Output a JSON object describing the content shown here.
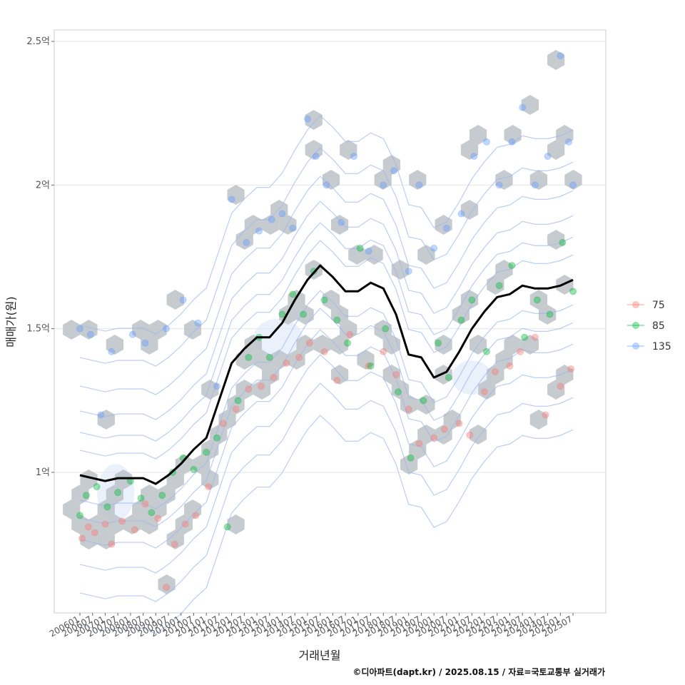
{
  "chart_data": {
    "type": "scatter",
    "xlabel": "거래년월",
    "ylabel": "매매가(원)",
    "caption": "©디아파트(dapt.kr) / 2025.08.15 / 자료=국토교통부 실거래가",
    "ylim": [
      0.5,
      2.55
    ],
    "y_ticks": [
      {
        "value": 1.0,
        "label": "1억"
      },
      {
        "value": 1.5,
        "label": "1.5억"
      },
      {
        "value": 2.0,
        "label": "2억"
      },
      {
        "value": 2.5,
        "label": "2.5억"
      }
    ],
    "x_range": [
      "2006-01",
      "2025-08"
    ],
    "x_tick_labels": [
      "200601",
      "200607",
      "200701",
      "200707",
      "200801",
      "200807",
      "200901",
      "200907",
      "201001",
      "201007",
      "201101",
      "201107",
      "201201",
      "201207",
      "201301",
      "201307",
      "201401",
      "201407",
      "201501",
      "201507",
      "201601",
      "201607",
      "201701",
      "201707",
      "201801",
      "201807",
      "201901",
      "201907",
      "202001",
      "202007",
      "202101",
      "202107",
      "202201",
      "202207",
      "202301",
      "202307",
      "202401",
      "202407",
      "202501",
      "202507"
    ],
    "legend": {
      "position": "right",
      "entries": [
        {
          "name": "75",
          "color": "#F8766D"
        },
        {
          "name": "85",
          "color": "#00BA38"
        },
        {
          "name": "135",
          "color": "#619CFF"
        }
      ]
    },
    "colors": {
      "hex": "#bcc2c8",
      "line": "#000000",
      "contour": "#9fb6ee",
      "core": "#dce7f7",
      "grid": "#e6e6e6",
      "panel_border": "#cccccc"
    },
    "trend_line": {
      "x": [
        "2006-01",
        "2006-07",
        "2007-01",
        "2007-07",
        "2008-01",
        "2008-07",
        "2009-01",
        "2009-07",
        "2010-01",
        "2010-07",
        "2011-01",
        "2011-07",
        "2012-01",
        "2012-07",
        "2013-01",
        "2013-07",
        "2014-01",
        "2014-07",
        "2015-01",
        "2015-07",
        "2016-01",
        "2016-07",
        "2017-01",
        "2017-07",
        "2018-01",
        "2018-07",
        "2019-01",
        "2019-07",
        "2020-01",
        "2020-07",
        "2021-01",
        "2021-07",
        "2022-01",
        "2022-07",
        "2023-01",
        "2023-07",
        "2024-01",
        "2024-07",
        "2025-01",
        "2025-07"
      ],
      "y": [
        0.99,
        0.98,
        0.97,
        0.98,
        0.98,
        0.98,
        0.96,
        0.99,
        1.03,
        1.08,
        1.12,
        1.25,
        1.38,
        1.43,
        1.47,
        1.47,
        1.52,
        1.6,
        1.67,
        1.72,
        1.68,
        1.63,
        1.63,
        1.66,
        1.64,
        1.55,
        1.41,
        1.4,
        1.33,
        1.35,
        1.42,
        1.5,
        1.56,
        1.61,
        1.62,
        1.65,
        1.64,
        1.64,
        1.65,
        1.67
      ]
    },
    "series": [
      {
        "name": "75",
        "points": [
          [
            "2006-02",
            0.77
          ],
          [
            "2006-05",
            0.81
          ],
          [
            "2006-08",
            0.79
          ],
          [
            "2007-01",
            0.82
          ],
          [
            "2007-04",
            0.75
          ],
          [
            "2007-09",
            0.83
          ],
          [
            "2008-03",
            0.8
          ],
          [
            "2008-08",
            0.89
          ],
          [
            "2009-02",
            0.84
          ],
          [
            "2009-06",
            0.6
          ],
          [
            "2009-10",
            0.75
          ],
          [
            "2010-03",
            0.82
          ],
          [
            "2010-08",
            0.85
          ],
          [
            "2011-02",
            0.95
          ],
          [
            "2011-09",
            1.17
          ],
          [
            "2012-03",
            1.22
          ],
          [
            "2012-09",
            1.29
          ],
          [
            "2013-03",
            1.3
          ],
          [
            "2013-09",
            1.33
          ],
          [
            "2014-03",
            1.38
          ],
          [
            "2014-09",
            1.4
          ],
          [
            "2015-02",
            1.45
          ],
          [
            "2015-09",
            1.42
          ],
          [
            "2016-03",
            1.32
          ],
          [
            "2016-09",
            1.48
          ],
          [
            "2017-06",
            1.37
          ],
          [
            "2018-01",
            1.42
          ],
          [
            "2018-07",
            1.34
          ],
          [
            "2019-01",
            1.22
          ],
          [
            "2019-06",
            1.1
          ],
          [
            "2020-01",
            1.12
          ],
          [
            "2020-06",
            1.15
          ],
          [
            "2021-01",
            1.17
          ],
          [
            "2021-06",
            1.13
          ],
          [
            "2022-01",
            1.28
          ],
          [
            "2022-06",
            1.35
          ],
          [
            "2023-01",
            1.37
          ],
          [
            "2023-06",
            1.42
          ],
          [
            "2024-01",
            1.47
          ],
          [
            "2024-06",
            1.2
          ],
          [
            "2025-01",
            1.3
          ],
          [
            "2025-06",
            1.36
          ]
        ]
      },
      {
        "name": "85",
        "points": [
          [
            "2006-01",
            0.85
          ],
          [
            "2006-04",
            0.92
          ],
          [
            "2006-09",
            0.95
          ],
          [
            "2007-02",
            0.88
          ],
          [
            "2007-07",
            0.93
          ],
          [
            "2008-01",
            0.97
          ],
          [
            "2008-06",
            0.91
          ],
          [
            "2008-11",
            0.86
          ],
          [
            "2009-04",
            0.92
          ],
          [
            "2009-09",
            1.0
          ],
          [
            "2010-02",
            1.05
          ],
          [
            "2010-07",
            1.01
          ],
          [
            "2011-01",
            1.07
          ],
          [
            "2011-06",
            1.12
          ],
          [
            "2011-11",
            0.81
          ],
          [
            "2012-04",
            1.25
          ],
          [
            "2012-09",
            1.4
          ],
          [
            "2013-02",
            1.47
          ],
          [
            "2013-07",
            1.4
          ],
          [
            "2014-01",
            1.55
          ],
          [
            "2014-06",
            1.62
          ],
          [
            "2014-11",
            1.55
          ],
          [
            "2015-04",
            1.7
          ],
          [
            "2015-09",
            1.6
          ],
          [
            "2016-03",
            1.53
          ],
          [
            "2016-08",
            1.45
          ],
          [
            "2017-02",
            1.78
          ],
          [
            "2017-07",
            1.37
          ],
          [
            "2018-02",
            1.5
          ],
          [
            "2018-08",
            1.28
          ],
          [
            "2019-02",
            1.05
          ],
          [
            "2019-08",
            1.25
          ],
          [
            "2020-03",
            1.45
          ],
          [
            "2020-08",
            1.33
          ],
          [
            "2021-02",
            1.53
          ],
          [
            "2021-07",
            1.6
          ],
          [
            "2022-02",
            1.42
          ],
          [
            "2022-08",
            1.65
          ],
          [
            "2023-02",
            1.72
          ],
          [
            "2023-08",
            1.47
          ],
          [
            "2024-02",
            1.6
          ],
          [
            "2024-08",
            1.55
          ],
          [
            "2025-02",
            1.8
          ],
          [
            "2025-07",
            1.63
          ]
        ]
      },
      {
        "name": "135",
        "points": [
          [
            "2006-01",
            1.5
          ],
          [
            "2006-06",
            1.48
          ],
          [
            "2006-11",
            1.2
          ],
          [
            "2007-04",
            1.42
          ],
          [
            "2008-02",
            1.48
          ],
          [
            "2008-08",
            1.45
          ],
          [
            "2009-06",
            1.5
          ],
          [
            "2010-02",
            1.6
          ],
          [
            "2010-09",
            1.52
          ],
          [
            "2011-06",
            1.3
          ],
          [
            "2012-01",
            1.95
          ],
          [
            "2012-08",
            1.8
          ],
          [
            "2013-02",
            1.84
          ],
          [
            "2013-08",
            1.88
          ],
          [
            "2014-01",
            1.9
          ],
          [
            "2014-06",
            1.85
          ],
          [
            "2015-01",
            2.23
          ],
          [
            "2015-05",
            2.1
          ],
          [
            "2015-10",
            2.0
          ],
          [
            "2016-05",
            1.87
          ],
          [
            "2016-11",
            2.1
          ],
          [
            "2017-06",
            1.77
          ],
          [
            "2018-01",
            2.0
          ],
          [
            "2018-06",
            2.05
          ],
          [
            "2019-01",
            1.7
          ],
          [
            "2019-06",
            2.0
          ],
          [
            "2020-01",
            1.78
          ],
          [
            "2020-07",
            1.85
          ],
          [
            "2021-02",
            1.9
          ],
          [
            "2021-08",
            2.1
          ],
          [
            "2022-02",
            2.15
          ],
          [
            "2022-08",
            2.0
          ],
          [
            "2023-02",
            2.15
          ],
          [
            "2023-07",
            2.27
          ],
          [
            "2024-01",
            2.0
          ],
          [
            "2024-07",
            2.1
          ],
          [
            "2025-01",
            2.45
          ],
          [
            "2025-05",
            2.15
          ],
          [
            "2025-07",
            2.0
          ]
        ]
      }
    ]
  }
}
